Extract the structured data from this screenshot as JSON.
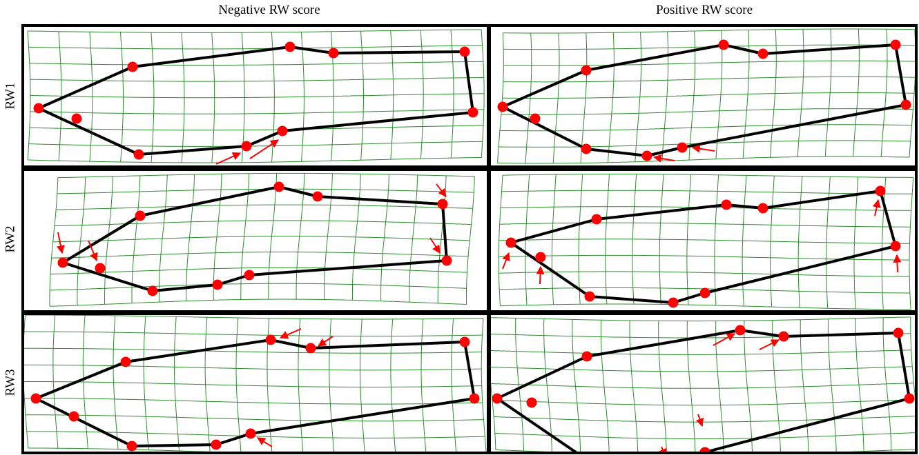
{
  "columns": [
    "Negative RW score",
    "Positive RW score"
  ],
  "rows": [
    "RW1",
    "RW2",
    "RW3"
  ],
  "colors": {
    "grid": "#2e8b2e",
    "outline": "#000000",
    "landmark": "#ff0000",
    "arrow": "#ff0000",
    "frame": "#000000"
  }
}
